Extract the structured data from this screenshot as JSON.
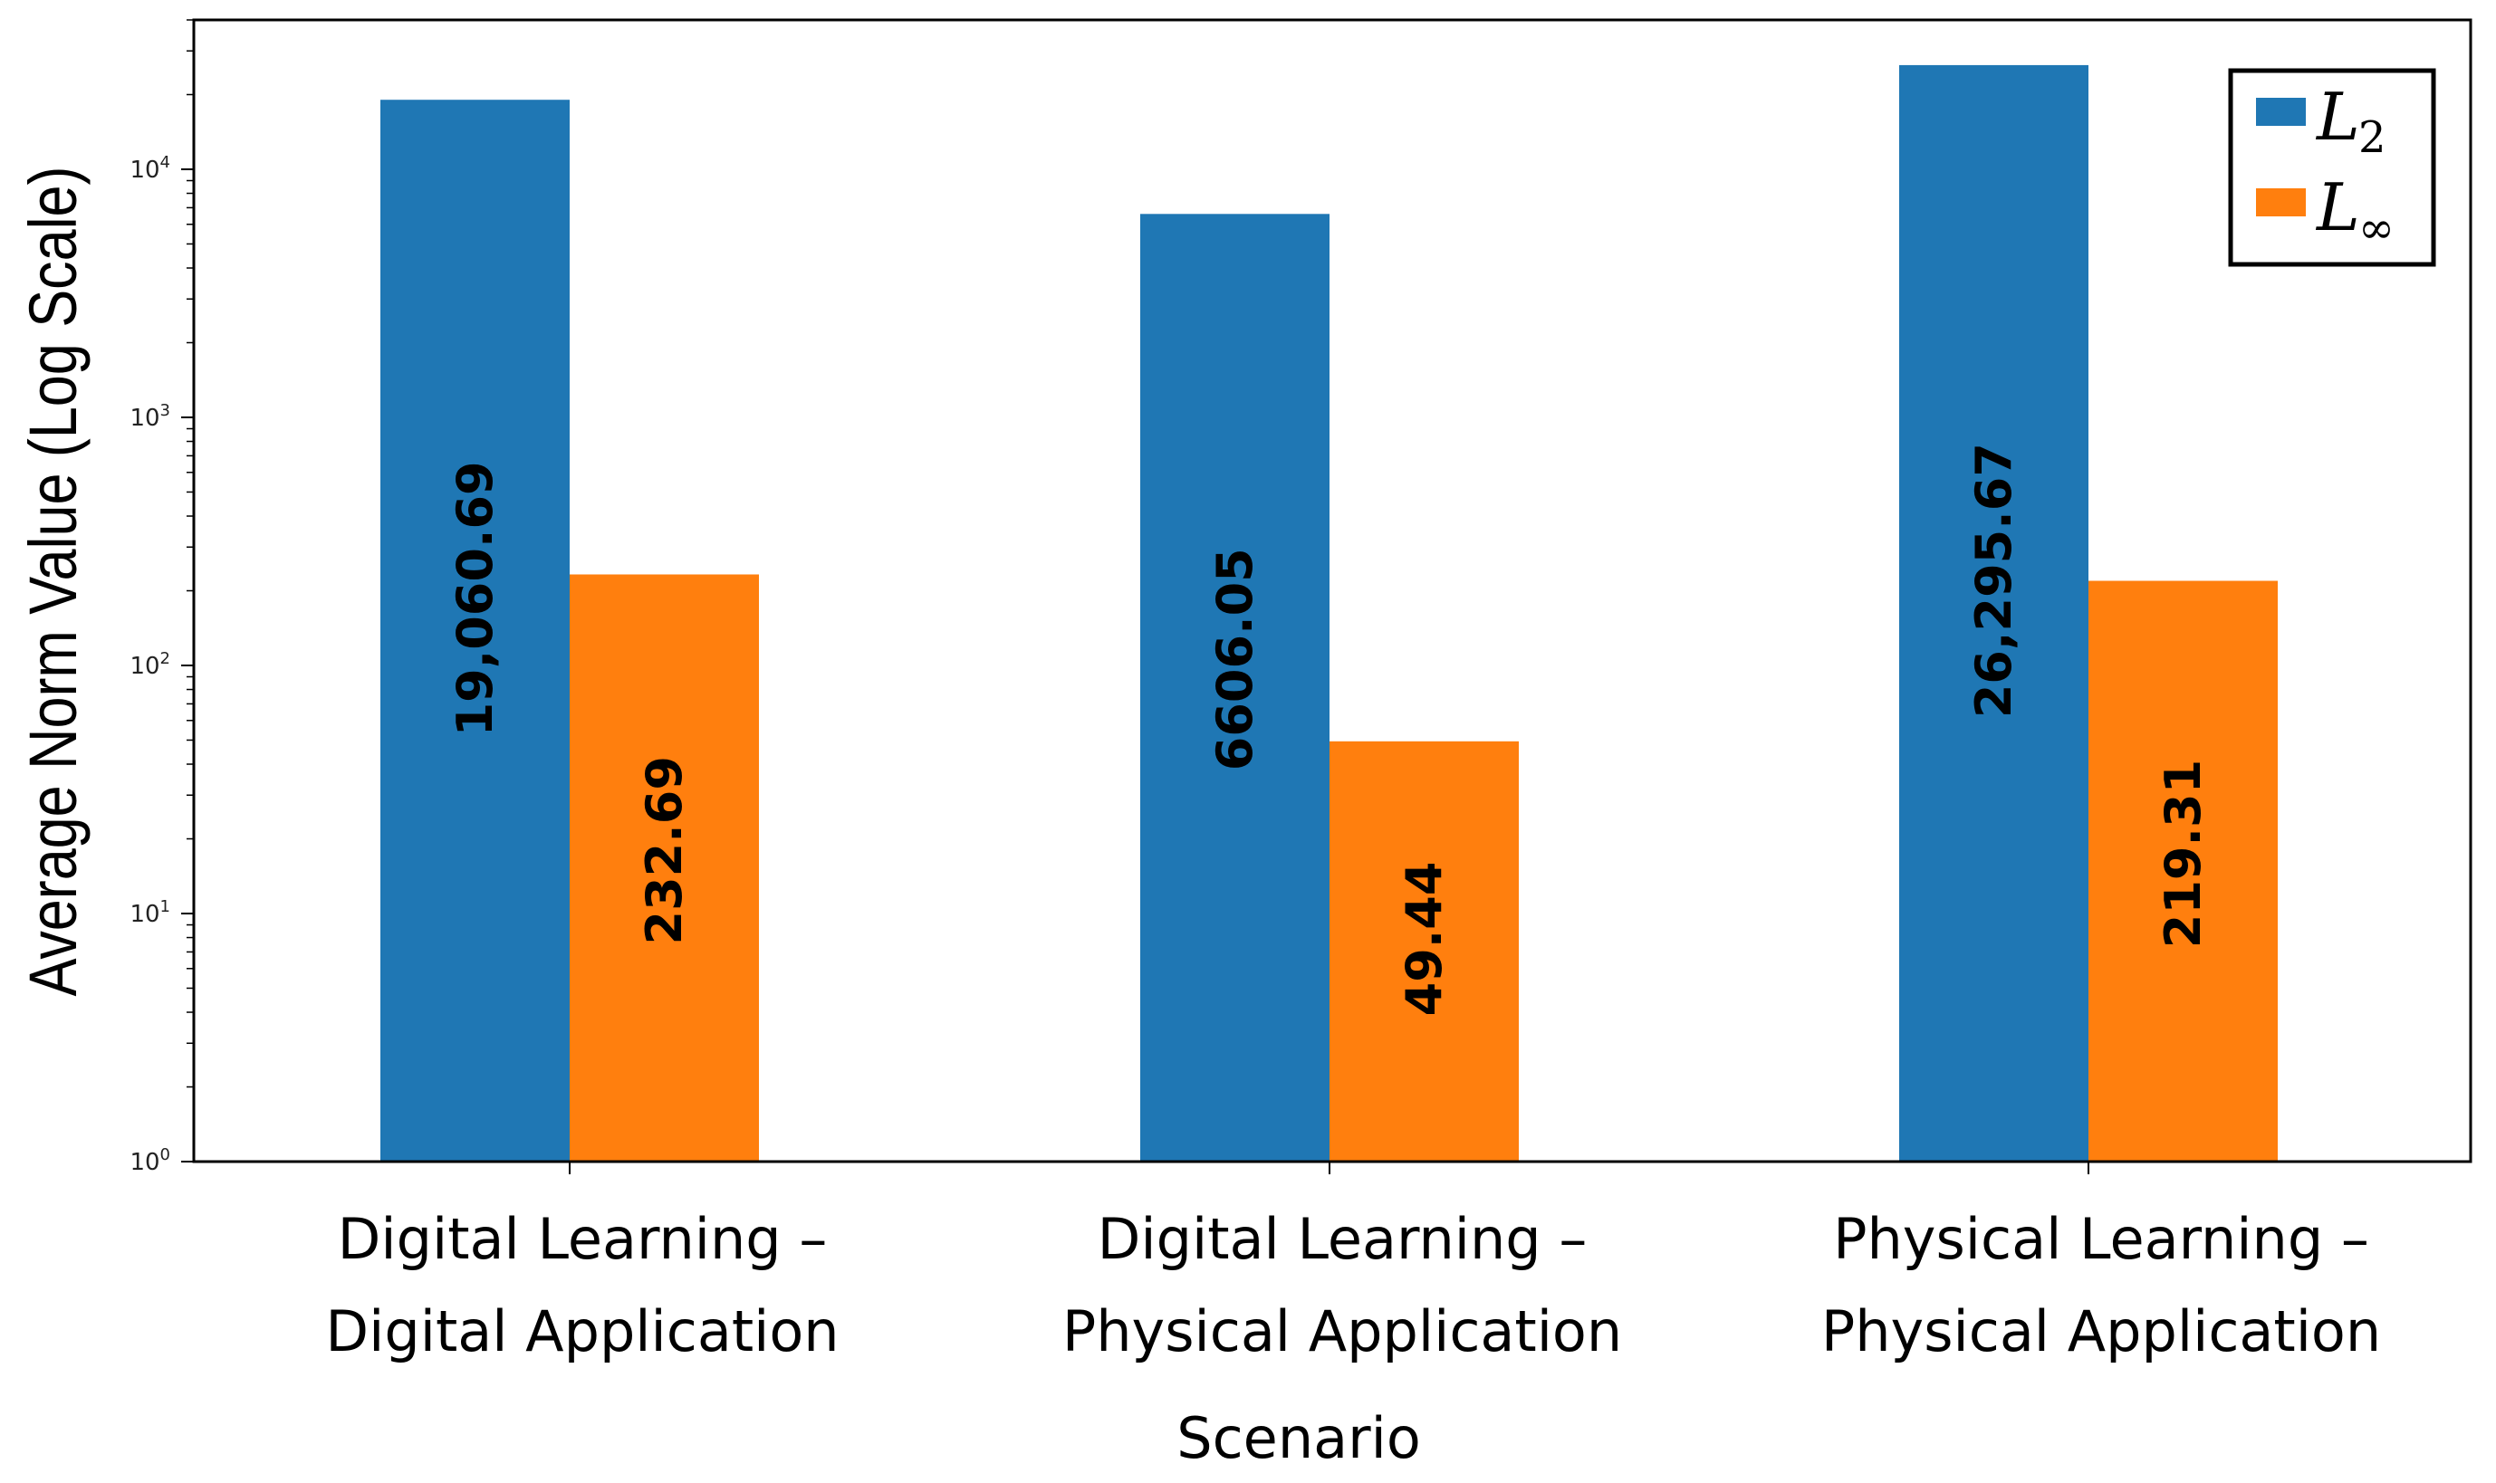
{
  "chart_data": {
    "type": "bar",
    "title": "",
    "xlabel": "Scenario",
    "ylabel": "Average Norm Value (Log Scale)",
    "yscale": "log",
    "ylim": [
      1,
      40000
    ],
    "yticks": [
      1,
      10,
      100,
      1000,
      10000
    ],
    "ytick_labels": [
      {
        "base": "10",
        "exp": "0"
      },
      {
        "base": "10",
        "exp": "1"
      },
      {
        "base": "10",
        "exp": "2"
      },
      {
        "base": "10",
        "exp": "3"
      },
      {
        "base": "10",
        "exp": "4"
      }
    ],
    "categories": [
      [
        "Digital Learning –",
        "Digital Application"
      ],
      [
        "Digital Learning –",
        "Physical Application"
      ],
      [
        "Physical Learning –",
        "Physical Application"
      ]
    ],
    "series": [
      {
        "name": "L2",
        "legend_main": "L",
        "legend_sub": "2",
        "color": "#1f77b4",
        "values": [
          19060.69,
          6606.05,
          26295.67
        ],
        "labels": [
          "19,060.69",
          "6606.05",
          "26,295.67"
        ]
      },
      {
        "name": "L∞",
        "legend_main": "L",
        "legend_sub": "∞",
        "color": "#ff7f0e",
        "values": [
          232.69,
          49.44,
          219.31
        ],
        "labels": [
          "232.69",
          "49.44",
          "219.31"
        ]
      }
    ],
    "legend_position": "top-right",
    "grid": false
  }
}
